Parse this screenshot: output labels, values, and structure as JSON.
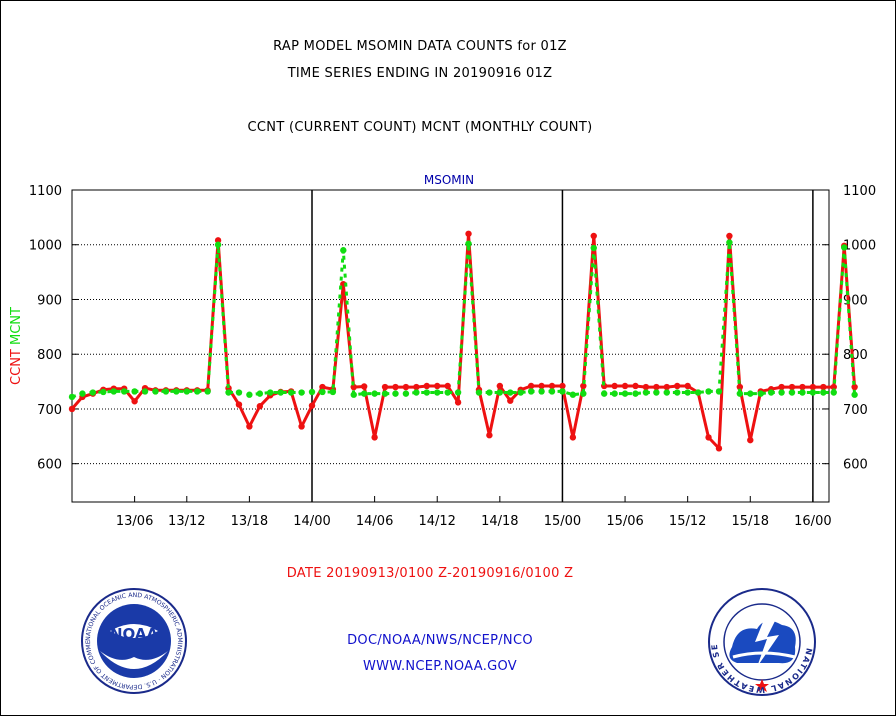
{
  "header": {
    "line1": "RAP MODEL MSOMIN DATA COUNTS for 01Z",
    "line2": "TIME SERIES ENDING IN 20190916 01Z",
    "line3": "CCNT (CURRENT COUNT) MCNT (MONTHLY COUNT)"
  },
  "footer": {
    "date_range": "DATE 20190913/0100 Z-20190916/0100 Z",
    "org": "DOC/NOAA/NWS/NCEP/NCO",
    "url": "WWW.NCEP.NOAA.GOV"
  },
  "logos": {
    "noaa_text": "NOAA",
    "noaa_ring": "NATIONAL OCEANIC AND ATMOSPHERIC ADMINISTRATION · U.S. DEPARTMENT OF COMMERCE ·",
    "nws_ring": "NATIONAL WEATHER SERVICE"
  },
  "colors": {
    "ccnt": "#ee1111",
    "mcnt": "#11dd11",
    "title_blue": "#0000aa",
    "footer_red": "#ee1111",
    "footer_blue": "#1111cc"
  },
  "chart_data": {
    "type": "line",
    "title": "MSOMIN",
    "ylabel_left": [
      "CCNT",
      "MCNT"
    ],
    "ylim": [
      530,
      1100
    ],
    "yticks": [
      600,
      700,
      800,
      900,
      1000,
      1100
    ],
    "xlim": [
      0,
      73.5
    ],
    "xticks": [
      {
        "x": 6,
        "label": "13/06"
      },
      {
        "x": 11,
        "label": "13/12"
      },
      {
        "x": 17,
        "label": "13/18"
      },
      {
        "x": 23,
        "label": "14/00"
      },
      {
        "x": 29,
        "label": "14/06"
      },
      {
        "x": 35,
        "label": "14/12"
      },
      {
        "x": 41,
        "label": "14/18"
      },
      {
        "x": 47,
        "label": "15/00"
      },
      {
        "x": 53,
        "label": "15/06"
      },
      {
        "x": 59,
        "label": "15/12"
      },
      {
        "x": 65,
        "label": "15/18"
      },
      {
        "x": 71,
        "label": "16/00"
      }
    ],
    "day_lines": [
      23,
      47,
      71
    ],
    "grid": true,
    "series": [
      {
        "name": "CCNT",
        "values": [
          700,
          722,
          728,
          735,
          737,
          737,
          714,
          738,
          734,
          734,
          734,
          734,
          734,
          734,
          1008,
          738,
          708,
          668,
          705,
          725,
          731,
          732,
          668,
          706,
          740,
          736,
          928,
          740,
          741,
          648,
          740,
          740,
          740,
          740,
          742,
          742,
          742,
          712,
          1020,
          735,
          652,
          742,
          715,
          735,
          742,
          742,
          742,
          742,
          648,
          742,
          1016,
          742,
          742,
          742,
          742,
          740,
          740,
          740,
          742,
          742,
          730,
          648,
          628,
          1016,
          740,
          643,
          732,
          736,
          740,
          740,
          740,
          740,
          740,
          740,
          998,
          740
        ]
      },
      {
        "name": "MCNT",
        "values": [
          722,
          728,
          730,
          731,
          732,
          732,
          732,
          732,
          732,
          732,
          732,
          732,
          732,
          732,
          1000,
          730,
          730,
          726,
          728,
          730,
          730,
          730,
          730,
          731,
          731,
          731,
          990,
          726,
          728,
          728,
          728,
          728,
          728,
          730,
          730,
          730,
          730,
          730,
          1002,
          730,
          730,
          730,
          730,
          730,
          732,
          732,
          732,
          732,
          726,
          728,
          994,
          728,
          728,
          728,
          728,
          730,
          730,
          730,
          730,
          730,
          730,
          732,
          732,
          1004,
          728,
          728,
          728,
          730,
          730,
          730,
          730,
          730,
          730,
          730,
          995,
          726
        ]
      }
    ]
  }
}
